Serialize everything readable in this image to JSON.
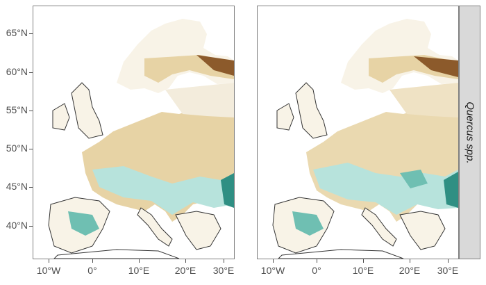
{
  "facet_label": "Quercus spp.",
  "y_axis": {
    "ticks": [
      "65°N",
      "60°N",
      "55°N",
      "50°N",
      "45°N",
      "40°N"
    ]
  },
  "x_axis": {
    "ticks": [
      "10°W",
      "0°",
      "10°E",
      "20°E",
      "30°E"
    ]
  },
  "palette": {
    "dark_brown": "#8c5a2b",
    "mid_brown": "#c8a468",
    "light_tan": "#e7d3a5",
    "pale": "#f3ecdc",
    "light_teal": "#b7e3dc",
    "mid_teal": "#6fbfb2",
    "dark_teal": "#2f8f83",
    "coastline": "#333333"
  },
  "panels": [
    "left",
    "right"
  ]
}
